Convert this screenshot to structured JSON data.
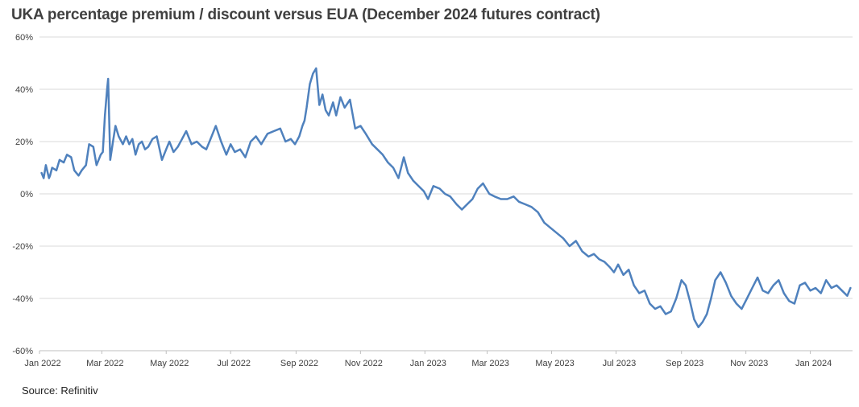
{
  "chart_data": {
    "type": "line",
    "title": "UKA percentage premium / discount versus EUA (December 2024 futures contract)",
    "source": "Source: Refinitiv",
    "xlabel": "",
    "ylabel": "",
    "ylim": [
      -60,
      60
    ],
    "yticks": [
      "60%",
      "40%",
      "20%",
      "0%",
      "-20%",
      "-40%",
      "-60%"
    ],
    "ytick_values": [
      60,
      40,
      20,
      0,
      -20,
      -40,
      -60
    ],
    "xlim": [
      "2022-01-01",
      "2024-02-10"
    ],
    "xticks": [
      "Jan 2022",
      "Mar 2022",
      "May 2022",
      "Jul 2022",
      "Sep 2022",
      "Nov 2022",
      "Jan 2023",
      "Mar 2023",
      "May 2023",
      "Jul 2023",
      "Sep 2023",
      "Nov 2023",
      "Jan 2024"
    ],
    "xtick_dates": [
      "2022-01-01",
      "2022-03-01",
      "2022-05-01",
      "2022-07-01",
      "2022-09-01",
      "2022-11-01",
      "2023-01-01",
      "2023-03-01",
      "2023-05-01",
      "2023-07-01",
      "2023-09-01",
      "2023-11-01",
      "2024-01-01"
    ],
    "grid": true,
    "line_color": "#4F81BD",
    "series": [
      {
        "name": "",
        "x": [
          "2022-01-03",
          "2022-01-05",
          "2022-01-07",
          "2022-01-10",
          "2022-01-11",
          "2022-01-13",
          "2022-01-17",
          "2022-01-20",
          "2022-01-24",
          "2022-01-27",
          "2022-01-31",
          "2022-02-03",
          "2022-02-07",
          "2022-02-10",
          "2022-02-14",
          "2022-02-17",
          "2022-02-21",
          "2022-02-24",
          "2022-02-28",
          "2022-03-02",
          "2022-03-04",
          "2022-03-06",
          "2022-03-07",
          "2022-03-09",
          "2022-03-12",
          "2022-03-14",
          "2022-03-17",
          "2022-03-21",
          "2022-03-24",
          "2022-03-27",
          "2022-03-30",
          "2022-04-02",
          "2022-04-05",
          "2022-04-08",
          "2022-04-11",
          "2022-04-14",
          "2022-04-18",
          "2022-04-22",
          "2022-04-27",
          "2022-05-01",
          "2022-05-04",
          "2022-05-08",
          "2022-05-12",
          "2022-05-16",
          "2022-05-20",
          "2022-05-25",
          "2022-05-30",
          "2022-06-04",
          "2022-06-08",
          "2022-06-12",
          "2022-06-17",
          "2022-06-22",
          "2022-06-27",
          "2022-07-01",
          "2022-07-05",
          "2022-07-10",
          "2022-07-15",
          "2022-07-20",
          "2022-07-25",
          "2022-07-30",
          "2022-08-05",
          "2022-08-11",
          "2022-08-17",
          "2022-08-22",
          "2022-08-27",
          "2022-08-31",
          "2022-09-04",
          "2022-09-07",
          "2022-09-09",
          "2022-09-11",
          "2022-09-14",
          "2022-09-17",
          "2022-09-20",
          "2022-09-23",
          "2022-09-26",
          "2022-09-29",
          "2022-10-02",
          "2022-10-06",
          "2022-10-09",
          "2022-10-13",
          "2022-10-17",
          "2022-10-22",
          "2022-10-27",
          "2022-11-01",
          "2022-11-06",
          "2022-11-12",
          "2022-11-17",
          "2022-11-22",
          "2022-11-27",
          "2022-12-02",
          "2022-12-07",
          "2022-12-12",
          "2022-12-16",
          "2022-12-21",
          "2022-12-26",
          "2022-12-31",
          "2023-01-04",
          "2023-01-09",
          "2023-01-15",
          "2023-01-20",
          "2023-01-25",
          "2023-01-31",
          "2023-02-05",
          "2023-02-10",
          "2023-02-15",
          "2023-02-20",
          "2023-02-25",
          "2023-03-03",
          "2023-03-08",
          "2023-03-14",
          "2023-03-20",
          "2023-03-26",
          "2023-03-31",
          "2023-04-06",
          "2023-04-12",
          "2023-04-18",
          "2023-04-24",
          "2023-04-30",
          "2023-05-06",
          "2023-05-12",
          "2023-05-18",
          "2023-05-24",
          "2023-05-30",
          "2023-06-05",
          "2023-06-10",
          "2023-06-15",
          "2023-06-20",
          "2023-06-25",
          "2023-06-29",
          "2023-07-03",
          "2023-07-08",
          "2023-07-13",
          "2023-07-18",
          "2023-07-23",
          "2023-07-28",
          "2023-08-02",
          "2023-08-07",
          "2023-08-12",
          "2023-08-17",
          "2023-08-22",
          "2023-08-27",
          "2023-09-01",
          "2023-09-05",
          "2023-09-09",
          "2023-09-13",
          "2023-09-17",
          "2023-09-21",
          "2023-09-25",
          "2023-09-29",
          "2023-10-03",
          "2023-10-08",
          "2023-10-13",
          "2023-10-18",
          "2023-10-23",
          "2023-10-28",
          "2023-11-02",
          "2023-11-07",
          "2023-11-12",
          "2023-11-17",
          "2023-11-22",
          "2023-11-27",
          "2023-12-02",
          "2023-12-07",
          "2023-12-12",
          "2023-12-17",
          "2023-12-22",
          "2023-12-27",
          "2024-01-01",
          "2024-01-06",
          "2024-01-11",
          "2024-01-16",
          "2024-01-21",
          "2024-01-26",
          "2024-01-31",
          "2024-02-05",
          "2024-02-08"
        ],
        "values": [
          8,
          6,
          11,
          6,
          7,
          10,
          9,
          13,
          12,
          15,
          14,
          9,
          7,
          9,
          11,
          19,
          18,
          11,
          15,
          16,
          30,
          40,
          44,
          13,
          21,
          26,
          22,
          19,
          22,
          19,
          21,
          15,
          19,
          20,
          17,
          18,
          21,
          22,
          13,
          17,
          20,
          16,
          18,
          21,
          24,
          19,
          20,
          18,
          17,
          21,
          26,
          20,
          15,
          19,
          16,
          17,
          14,
          20,
          22,
          19,
          23,
          24,
          25,
          20,
          21,
          19,
          22,
          26,
          28,
          33,
          42,
          46,
          48,
          34,
          38,
          32,
          30,
          35,
          30,
          37,
          33,
          36,
          25,
          26,
          23,
          19,
          17,
          15,
          12,
          10,
          6,
          14,
          8,
          5,
          3,
          1,
          -2,
          3,
          2,
          0,
          -1,
          -4,
          -6,
          -4,
          -2,
          2,
          4,
          0,
          -1,
          -2,
          -2,
          -1,
          -3,
          -4,
          -5,
          -7,
          -11,
          -13,
          -15,
          -17,
          -20,
          -18,
          -22,
          -24,
          -23,
          -25,
          -26,
          -28,
          -30,
          -27,
          -31,
          -29,
          -35,
          -38,
          -37,
          -42,
          -44,
          -43,
          -46,
          -45,
          -40,
          -33,
          -35,
          -41,
          -48,
          -51,
          -49,
          -46,
          -40,
          -33,
          -30,
          -34,
          -39,
          -42,
          -44,
          -40,
          -36,
          -32,
          -37,
          -38,
          -35,
          -33,
          -38,
          -41,
          -42,
          -35,
          -34,
          -37,
          -36,
          -38,
          -33,
          -36,
          -35,
          -37,
          -39,
          -36
        ]
      }
    ]
  }
}
